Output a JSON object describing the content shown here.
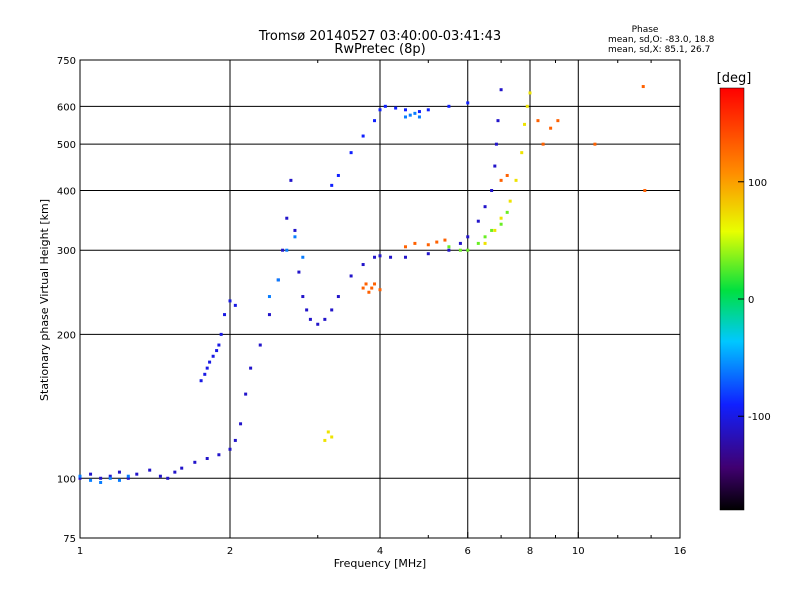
{
  "chart_data": {
    "type": "scatter",
    "title": "Tromsø 20140527 03:40:00-03:41:43",
    "subtitle": "RwPretec (8p)",
    "xlabel": "Frequency [MHz]",
    "ylabel": "Stationary phase Virtual Height [km]",
    "x_scale": "log",
    "y_scale": "log",
    "xlim": [
      1,
      16
    ],
    "ylim": [
      75,
      750
    ],
    "x_ticks": [
      "1",
      "2",
      "4",
      "6",
      "8",
      "10",
      "16"
    ],
    "x_tick_values": [
      1,
      2,
      4,
      6,
      8,
      10,
      16
    ],
    "y_ticks": [
      "75",
      "100",
      "200",
      "300",
      "400",
      "500",
      "600",
      "750"
    ],
    "y_tick_values": [
      75,
      100,
      200,
      300,
      400,
      500,
      600,
      750
    ],
    "grid": true,
    "stats": {
      "heading": "Phase",
      "line_o": "mean, sd,O: -83.0, 18.8",
      "line_x": "mean, sd,X:  85.1, 26.7"
    },
    "colorbar": {
      "label": "[deg]",
      "range": [
        -180,
        180
      ],
      "ticks": [
        "100",
        "0",
        "-100"
      ],
      "tick_values": [
        100,
        0,
        -100
      ]
    },
    "series": [
      {
        "phase": -110,
        "x": [
          1.0,
          1.05,
          1.1,
          1.15,
          1.2,
          1.25,
          1.3,
          1.38,
          1.45,
          1.5,
          1.55,
          1.6,
          1.7,
          1.8,
          1.9,
          2.0,
          2.05,
          2.1,
          2.15,
          2.2,
          2.3,
          2.4,
          2.5,
          2.55,
          2.6,
          2.65,
          2.7,
          2.75,
          2.8,
          2.85,
          2.9,
          3.0,
          3.1,
          3.2,
          3.3,
          3.5,
          3.7,
          3.9,
          4.0,
          4.2,
          4.5,
          5.0,
          5.5,
          5.8,
          6.0,
          6.3,
          6.5,
          6.7,
          6.8,
          6.85,
          6.9,
          7.0
        ],
        "y": [
          100,
          102,
          100,
          101,
          103,
          100,
          102,
          104,
          101,
          100,
          103,
          105,
          108,
          110,
          112,
          115,
          120,
          130,
          150,
          170,
          190,
          220,
          260,
          300,
          350,
          420,
          330,
          270,
          240,
          225,
          215,
          210,
          215,
          225,
          240,
          265,
          280,
          290,
          292,
          290,
          290,
          295,
          300,
          310,
          320,
          345,
          370,
          400,
          450,
          500,
          560,
          650
        ]
      },
      {
        "phase": -100,
        "x": [
          1.75,
          1.78,
          1.8,
          1.82,
          1.85,
          1.88,
          1.9,
          1.92,
          1.95,
          2.0,
          2.05
        ],
        "y": [
          160,
          165,
          170,
          175,
          180,
          185,
          190,
          200,
          220,
          235,
          230
        ]
      },
      {
        "phase": -90,
        "x": [
          3.2,
          3.3,
          3.5,
          3.7,
          3.9,
          4.0,
          4.1,
          4.3,
          4.5,
          4.8,
          5.0,
          5.5,
          6.0
        ],
        "y": [
          410,
          430,
          480,
          520,
          560,
          590,
          600,
          595,
          590,
          585,
          590,
          600,
          610
        ]
      },
      {
        "phase": -60,
        "x": [
          1.0,
          1.05,
          1.1,
          1.15,
          1.2,
          1.25,
          2.4,
          2.5,
          2.6,
          2.7,
          2.8,
          4.5,
          4.6,
          4.7,
          4.8
        ],
        "y": [
          101,
          99,
          98,
          100,
          99,
          101,
          240,
          260,
          300,
          320,
          290,
          570,
          575,
          580,
          570
        ]
      },
      {
        "phase": 30,
        "x": [
          5.5,
          5.8,
          6.0,
          6.3,
          6.5,
          6.7,
          7.0,
          7.2
        ],
        "y": [
          305,
          300,
          300,
          310,
          320,
          330,
          340,
          360
        ]
      },
      {
        "phase": 70,
        "x": [
          6.5,
          6.8,
          7.0,
          7.3,
          7.5,
          7.7,
          7.8,
          7.9,
          8.0,
          3.1,
          3.15,
          3.2
        ],
        "y": [
          310,
          330,
          350,
          380,
          420,
          480,
          550,
          600,
          640,
          120,
          125,
          122
        ]
      },
      {
        "phase": 130,
        "x": [
          3.7,
          3.75,
          3.8,
          3.85,
          3.9,
          4.0,
          4.5,
          4.7,
          5.0,
          5.2,
          5.4,
          7.0,
          7.2,
          8.3,
          8.5,
          8.8,
          9.1,
          10.8,
          13.5,
          13.6
        ],
        "y": [
          250,
          255,
          245,
          250,
          255,
          248,
          305,
          310,
          308,
          312,
          315,
          420,
          430,
          560,
          500,
          540,
          560,
          500,
          660,
          400
        ]
      }
    ]
  }
}
